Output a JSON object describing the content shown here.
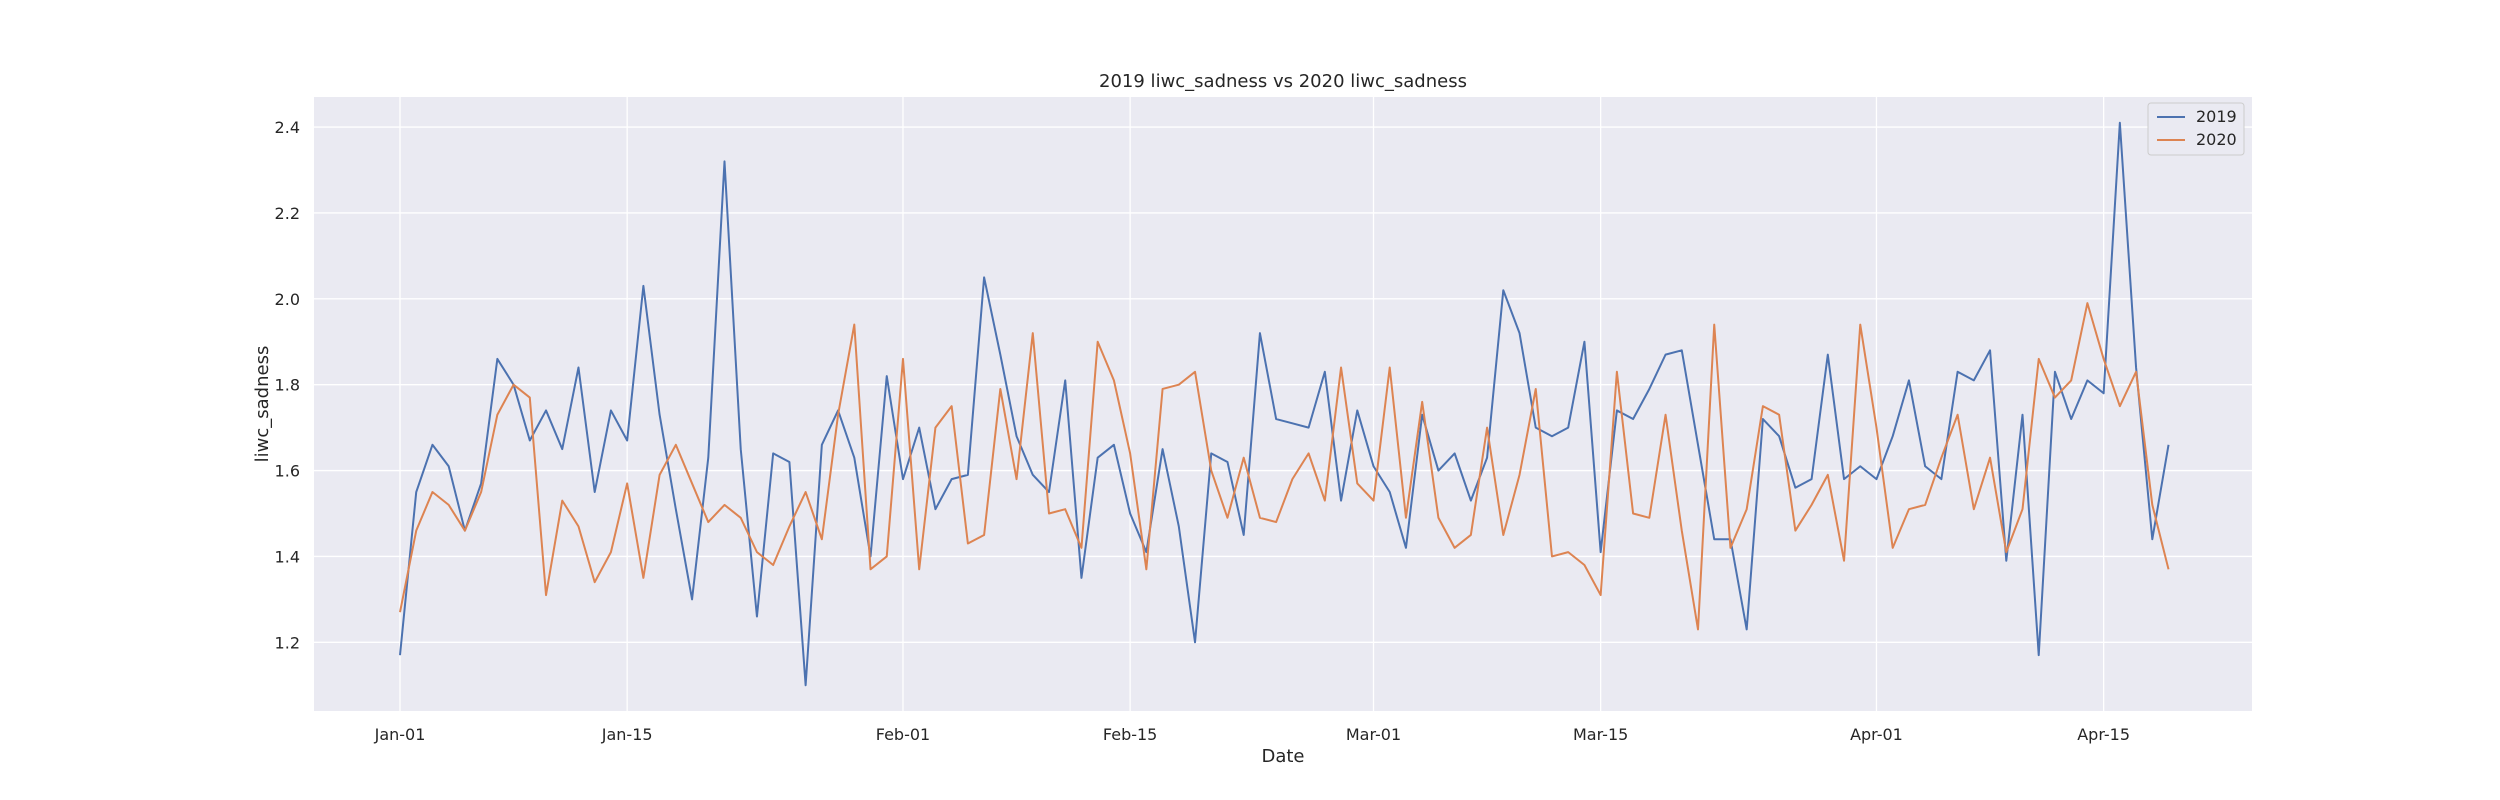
{
  "chart_data": {
    "type": "line",
    "title": "2019 liwc_sadness vs 2020 liwc_sadness",
    "xlabel": "Date",
    "ylabel": "liwc_sadness",
    "x_start": "Jan-01",
    "x_ticks": [
      "Jan-01",
      "Jan-15",
      "Feb-01",
      "Feb-15",
      "Mar-01",
      "Mar-15",
      "Apr-01",
      "Apr-15"
    ],
    "y_ticks": [
      "1.2",
      "1.4",
      "1.6",
      "1.8",
      "2.0",
      "2.2",
      "2.4"
    ],
    "ylim": [
      1.04,
      2.47
    ],
    "grid": true,
    "legend_position": "top-right",
    "colors": {
      "2019": "#4c72b0",
      "2020": "#dd8452",
      "background": "#eaeaf2",
      "grid": "#ffffff"
    },
    "series": [
      {
        "name": "2019",
        "values": [
          1.17,
          1.55,
          1.66,
          1.61,
          1.46,
          1.57,
          1.86,
          1.8,
          1.67,
          1.74,
          1.65,
          1.84,
          1.55,
          1.74,
          1.67,
          2.03,
          1.73,
          1.51,
          1.3,
          1.63,
          2.32,
          1.65,
          1.26,
          1.64,
          1.62,
          1.1,
          1.66,
          1.74,
          1.63,
          1.4,
          1.82,
          1.58,
          1.7,
          1.51,
          1.58,
          1.59,
          2.05,
          1.87,
          1.68,
          1.59,
          1.55,
          1.81,
          1.35,
          1.63,
          1.66,
          1.5,
          1.41,
          1.65,
          1.47,
          1.2,
          1.64,
          1.62,
          1.45,
          1.92,
          1.72,
          1.71,
          1.7,
          1.83,
          1.53,
          1.74,
          1.61,
          1.55,
          1.42,
          1.73,
          1.6,
          1.64,
          1.53,
          1.63,
          2.02,
          1.92,
          1.7,
          1.68,
          1.7,
          1.9,
          1.41,
          1.74,
          1.72,
          1.79,
          1.87,
          1.88,
          1.66,
          1.44,
          1.44,
          1.23,
          1.72,
          1.68,
          1.56,
          1.58,
          1.87,
          1.58,
          1.61,
          1.58,
          1.68,
          1.81,
          1.61,
          1.58,
          1.83,
          1.81,
          1.88,
          1.39,
          1.73,
          1.17,
          1.83,
          1.72,
          1.81,
          1.78,
          2.41,
          1.84,
          1.44,
          1.66
        ]
      },
      {
        "name": "2020",
        "values": [
          1.27,
          1.46,
          1.55,
          1.52,
          1.46,
          1.55,
          1.73,
          1.8,
          1.77,
          1.31,
          1.53,
          1.47,
          1.34,
          1.41,
          1.57,
          1.35,
          1.59,
          1.66,
          1.57,
          1.48,
          1.52,
          1.49,
          1.41,
          1.38,
          1.47,
          1.55,
          1.44,
          1.73,
          1.94,
          1.37,
          1.4,
          1.86,
          1.37,
          1.7,
          1.75,
          1.43,
          1.45,
          1.79,
          1.58,
          1.92,
          1.5,
          1.51,
          1.42,
          1.9,
          1.81,
          1.64,
          1.37,
          1.79,
          1.8,
          1.83,
          1.6,
          1.49,
          1.63,
          1.49,
          1.48,
          1.58,
          1.64,
          1.53,
          1.84,
          1.57,
          1.53,
          1.84,
          1.49,
          1.76,
          1.49,
          1.42,
          1.45,
          1.7,
          1.45,
          1.59,
          1.79,
          1.4,
          1.41,
          1.38,
          1.31,
          1.83,
          1.5,
          1.49,
          1.73,
          1.46,
          1.23,
          1.94,
          1.42,
          1.51,
          1.75,
          1.73,
          1.46,
          1.52,
          1.59,
          1.39,
          1.94,
          1.7,
          1.42,
          1.51,
          1.52,
          1.63,
          1.73,
          1.51,
          1.63,
          1.41,
          1.51,
          1.86,
          1.77,
          1.81,
          1.99,
          1.86,
          1.75,
          1.83,
          1.52,
          1.37
        ]
      }
    ]
  }
}
